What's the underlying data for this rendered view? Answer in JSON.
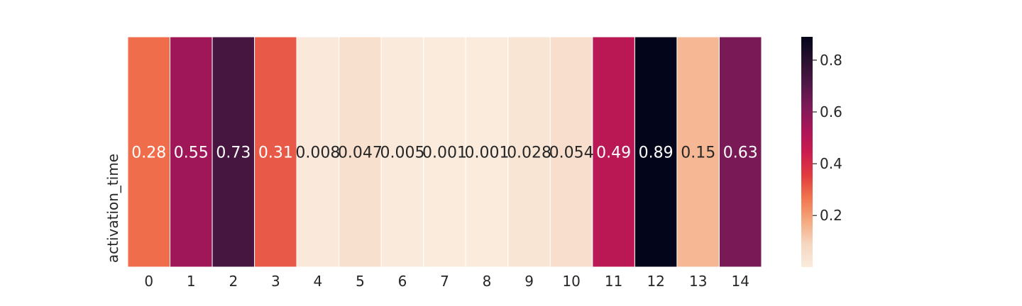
{
  "chart_data": {
    "type": "heatmap",
    "title": "",
    "xlabel": "",
    "ylabel": "activation_time",
    "rows": [
      "activation_time"
    ],
    "columns": [
      "0",
      "1",
      "2",
      "3",
      "4",
      "5",
      "6",
      "7",
      "8",
      "9",
      "10",
      "11",
      "12",
      "13",
      "14"
    ],
    "values": [
      [
        0.28,
        0.55,
        0.73,
        0.31,
        0.008,
        0.047,
        0.005,
        0.001,
        0.001,
        0.028,
        0.054,
        0.49,
        0.89,
        0.15,
        0.63
      ]
    ],
    "cell_labels": [
      [
        "0.28",
        "0.55",
        "0.73",
        "0.31",
        "0.008",
        "0.047",
        "0.005",
        "0.001",
        "0.001",
        "0.028",
        "0.054",
        "0.49",
        "0.89",
        "0.15",
        "0.63"
      ]
    ],
    "colorscale": "rocket_r",
    "colorbar": {
      "range": [
        0.001,
        0.89
      ],
      "ticks": [
        0.2,
        0.4,
        0.6,
        0.8
      ],
      "tick_labels": [
        "0.2",
        "0.4",
        "0.6",
        "0.8"
      ]
    },
    "grid": false
  }
}
